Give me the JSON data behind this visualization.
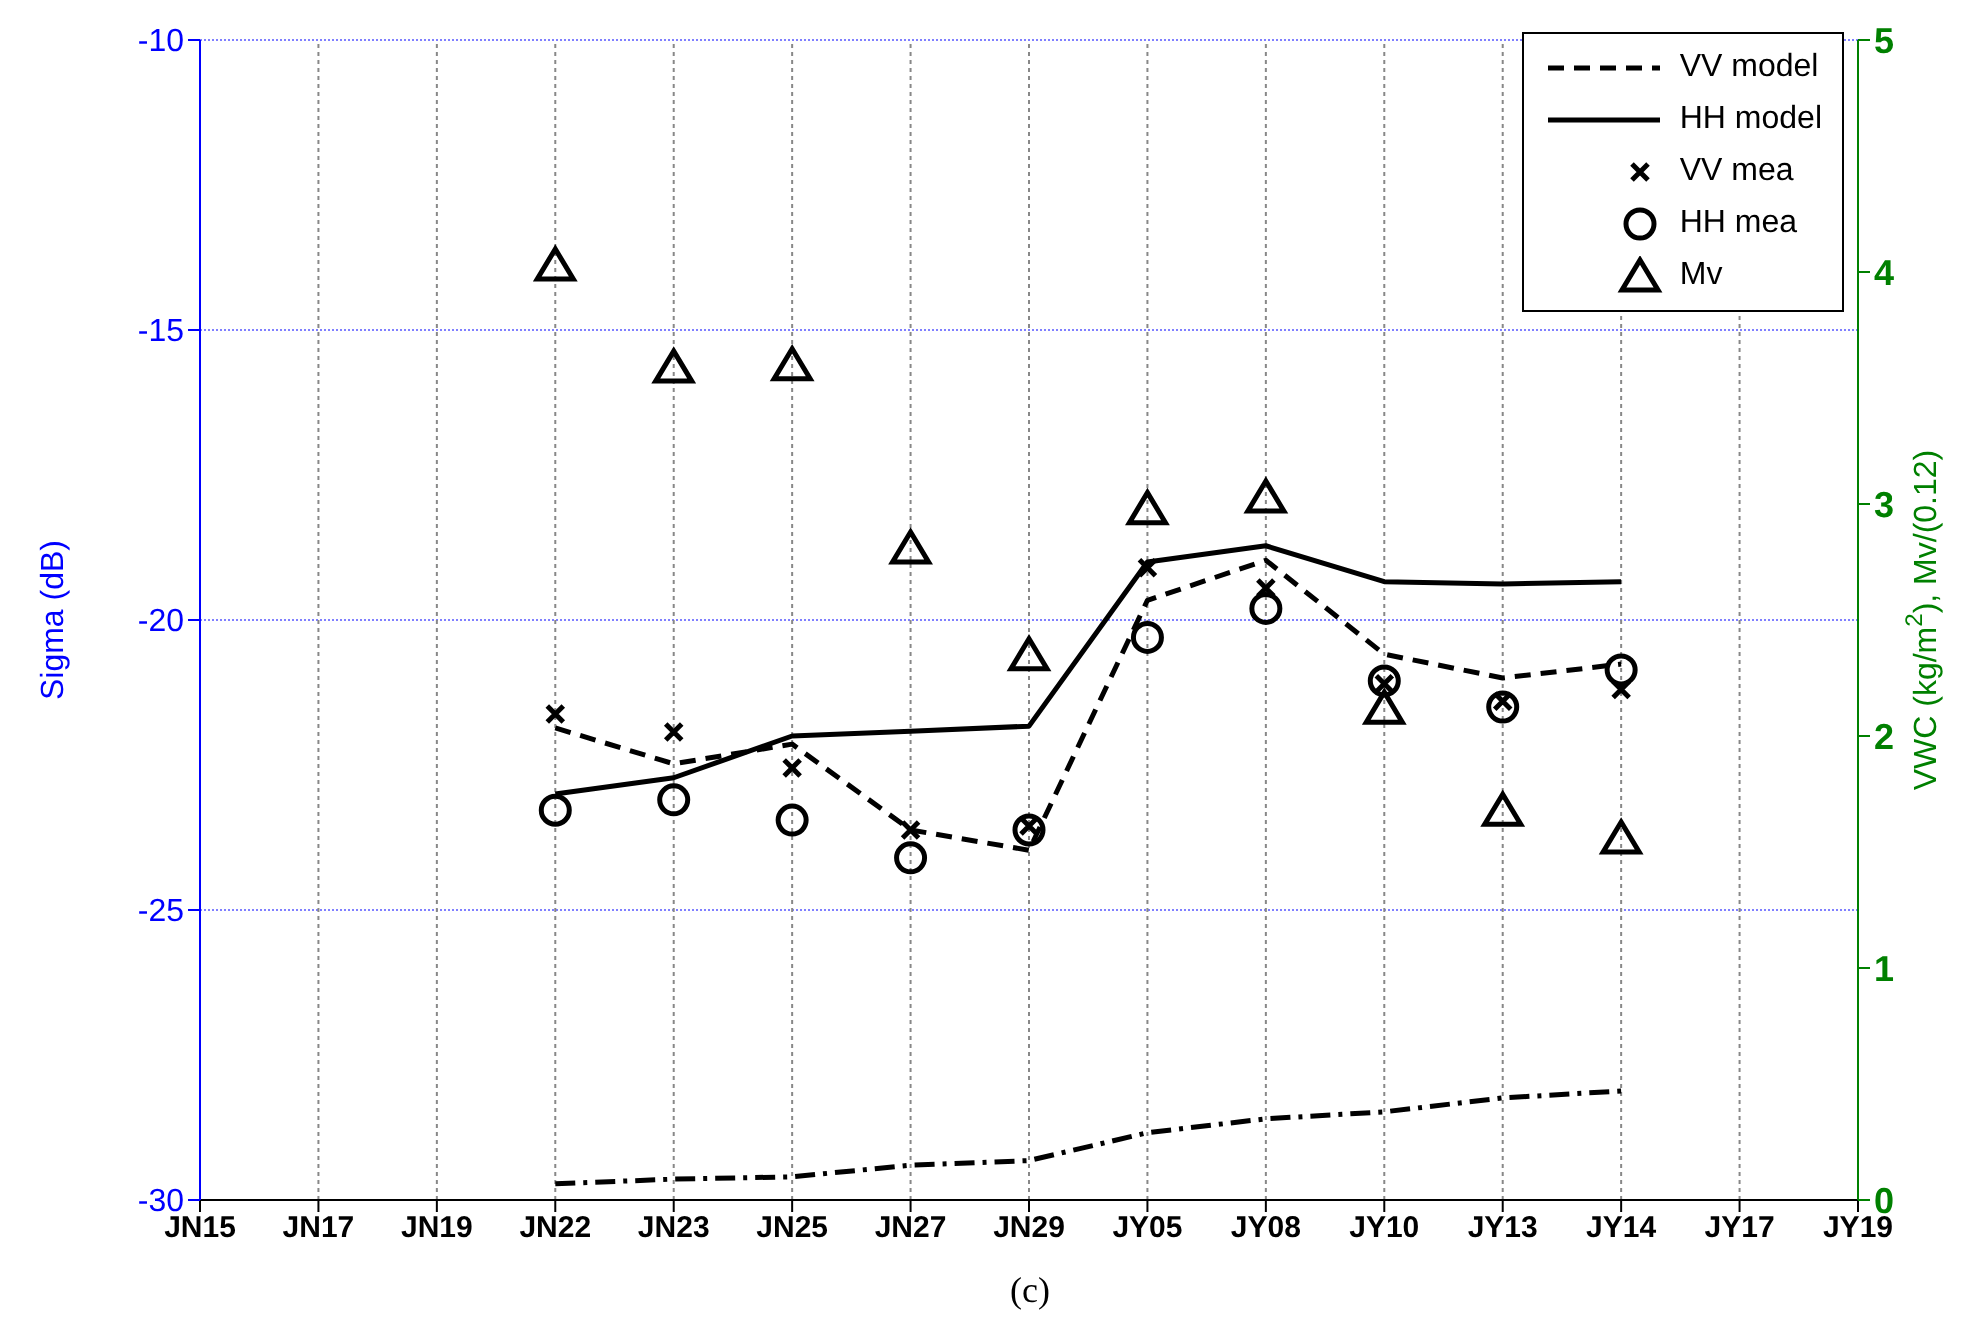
{
  "chart_data": {
    "type": "line",
    "categories": [
      "JN15",
      "JN17",
      "JN19",
      "JN22",
      "JN23",
      "JN25",
      "JN27",
      "JN29",
      "JY05",
      "JY08",
      "JY10",
      "JY13",
      "JY14",
      "JY17",
      "JY19"
    ],
    "series": [
      {
        "name": "VV model",
        "line_style": "dashed",
        "marker": "none",
        "color": "#000000",
        "values": [
          null,
          null,
          null,
          -21.86,
          -22.48,
          -22.14,
          -23.62,
          -23.97,
          -19.66,
          -18.97,
          -20.59,
          -21.0,
          -20.76,
          null,
          null
        ]
      },
      {
        "name": "HH model",
        "line_style": "solid",
        "marker": "none",
        "color": "#000000",
        "values": [
          null,
          null,
          null,
          -23.0,
          -22.72,
          -22.0,
          -21.92,
          -21.83,
          -19.0,
          -18.72,
          -19.34,
          -19.38,
          -19.34,
          null,
          null
        ]
      },
      {
        "name": "VV mea",
        "type": "scatter",
        "marker": "cross",
        "color": "#000000",
        "values": [
          null,
          null,
          null,
          -21.62,
          -21.93,
          -22.55,
          -23.62,
          -23.55,
          -19.1,
          -19.45,
          -21.1,
          -21.4,
          -21.2,
          null,
          null
        ]
      },
      {
        "name": "HH mea",
        "type": "scatter",
        "marker": "circle",
        "color": "#000000",
        "values": [
          null,
          null,
          null,
          -23.28,
          -23.1,
          -23.45,
          -24.1,
          -23.62,
          -20.3,
          -19.8,
          -21.05,
          -21.5,
          -20.86,
          null,
          null
        ]
      },
      {
        "name": "Mv",
        "type": "scatter",
        "marker": "triangle",
        "axis": "y2",
        "color": "#000000",
        "values": [
          null,
          null,
          null,
          4.03,
          3.59,
          3.6,
          2.81,
          2.35,
          2.98,
          3.03,
          2.12,
          1.68,
          1.56,
          null,
          null
        ]
      },
      {
        "line_style": "dashdot",
        "marker": "none",
        "axis": "y2",
        "color": "#000000",
        "values": [
          null,
          null,
          null,
          0.07,
          0.09,
          0.1,
          0.15,
          0.17,
          0.29,
          0.35,
          0.38,
          0.44,
          0.47,
          null,
          null
        ]
      }
    ],
    "ylabel": "Sigma (dB)",
    "y2label": "VWC (kg/m$^{2}$), Mv/(0.12)",
    "ylim": [
      -30,
      -10
    ],
    "yticks": [
      -30,
      -25,
      -20,
      -15,
      -10
    ],
    "y2lim": [
      0,
      5
    ],
    "y2ticks": [
      0,
      1,
      2,
      3,
      4,
      5
    ],
    "grid": true,
    "legend": "top right",
    "annotations": [
      "(c)"
    ]
  }
}
